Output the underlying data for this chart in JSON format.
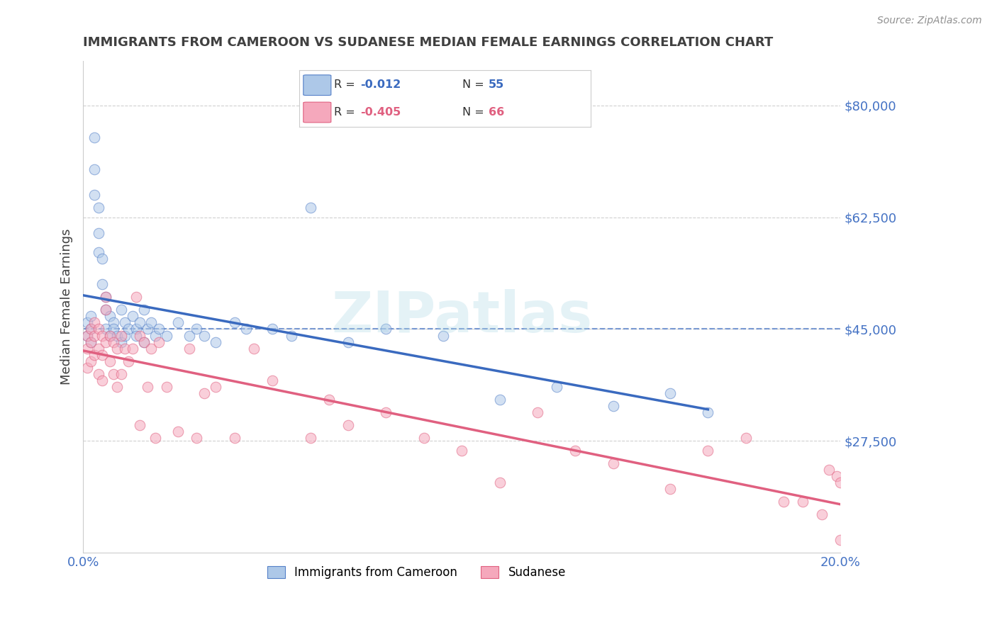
{
  "title": "IMMIGRANTS FROM CAMEROON VS SUDANESE MEDIAN FEMALE EARNINGS CORRELATION CHART",
  "source": "Source: ZipAtlas.com",
  "ylabel": "Median Female Earnings",
  "xlim": [
    0.0,
    0.2
  ],
  "ylim": [
    10000,
    87000
  ],
  "yticks": [
    27500,
    45000,
    62500,
    80000
  ],
  "ytick_labels": [
    "$27,500",
    "$45,000",
    "$62,500",
    "$80,000"
  ],
  "xticks": [
    0.0,
    0.05,
    0.1,
    0.15,
    0.2
  ],
  "xtick_labels": [
    "0.0%",
    "",
    "",
    "",
    "20.0%"
  ],
  "background_color": "#ffffff",
  "grid_color": "#d0d0d0",
  "cameroon_fill": "#adc8e8",
  "sudanese_fill": "#f5a8bc",
  "cameroon_edge": "#5580c8",
  "sudanese_edge": "#e06080",
  "cameroon_line_color": "#3a6abf",
  "sudanese_line_color": "#e06080",
  "title_color": "#404040",
  "tick_label_color": "#4472c4",
  "marker_size": 110,
  "marker_alpha": 0.55,
  "dashed_line_y": 45000,
  "dashed_line_color": "#4472c4",
  "watermark": "ZIPatlas",
  "cameroon_R": "-0.012",
  "cameroon_N": "55",
  "sudanese_R": "-0.405",
  "sudanese_N": "66",
  "cameroon_scatter_x": [
    0.001,
    0.001,
    0.002,
    0.002,
    0.002,
    0.003,
    0.003,
    0.003,
    0.004,
    0.004,
    0.004,
    0.005,
    0.005,
    0.006,
    0.006,
    0.006,
    0.007,
    0.007,
    0.008,
    0.008,
    0.009,
    0.01,
    0.01,
    0.011,
    0.011,
    0.012,
    0.013,
    0.014,
    0.014,
    0.015,
    0.016,
    0.016,
    0.017,
    0.018,
    0.019,
    0.02,
    0.022,
    0.025,
    0.028,
    0.03,
    0.032,
    0.035,
    0.04,
    0.043,
    0.05,
    0.055,
    0.06,
    0.07,
    0.08,
    0.095,
    0.11,
    0.125,
    0.14,
    0.155,
    0.165
  ],
  "cameroon_scatter_y": [
    44000,
    46000,
    43000,
    47000,
    45000,
    75000,
    70000,
    66000,
    64000,
    60000,
    57000,
    56000,
    52000,
    50000,
    48000,
    45000,
    47000,
    44000,
    46000,
    45000,
    44000,
    48000,
    43000,
    46000,
    44000,
    45000,
    47000,
    45000,
    44000,
    46000,
    48000,
    43000,
    45000,
    46000,
    44000,
    45000,
    44000,
    46000,
    44000,
    45000,
    44000,
    43000,
    46000,
    45000,
    45000,
    44000,
    64000,
    43000,
    45000,
    44000,
    34000,
    36000,
    33000,
    35000,
    32000
  ],
  "sudanese_scatter_x": [
    0.001,
    0.001,
    0.001,
    0.002,
    0.002,
    0.002,
    0.003,
    0.003,
    0.003,
    0.004,
    0.004,
    0.004,
    0.005,
    0.005,
    0.005,
    0.006,
    0.006,
    0.006,
    0.007,
    0.007,
    0.008,
    0.008,
    0.009,
    0.009,
    0.01,
    0.01,
    0.011,
    0.012,
    0.013,
    0.014,
    0.015,
    0.015,
    0.016,
    0.017,
    0.018,
    0.019,
    0.02,
    0.022,
    0.025,
    0.028,
    0.03,
    0.032,
    0.035,
    0.04,
    0.045,
    0.05,
    0.06,
    0.065,
    0.07,
    0.08,
    0.09,
    0.1,
    0.11,
    0.12,
    0.13,
    0.14,
    0.155,
    0.165,
    0.175,
    0.185,
    0.19,
    0.195,
    0.197,
    0.199,
    0.2,
    0.2
  ],
  "sudanese_scatter_y": [
    44000,
    42000,
    39000,
    45000,
    43000,
    40000,
    46000,
    44000,
    41000,
    45000,
    42000,
    38000,
    44000,
    41000,
    37000,
    50000,
    48000,
    43000,
    44000,
    40000,
    43000,
    38000,
    42000,
    36000,
    44000,
    38000,
    42000,
    40000,
    42000,
    50000,
    44000,
    30000,
    43000,
    36000,
    42000,
    28000,
    43000,
    36000,
    29000,
    42000,
    28000,
    35000,
    36000,
    28000,
    42000,
    37000,
    28000,
    34000,
    30000,
    32000,
    28000,
    26000,
    21000,
    32000,
    26000,
    24000,
    20000,
    26000,
    28000,
    18000,
    18000,
    16000,
    23000,
    22000,
    21000,
    12000
  ]
}
